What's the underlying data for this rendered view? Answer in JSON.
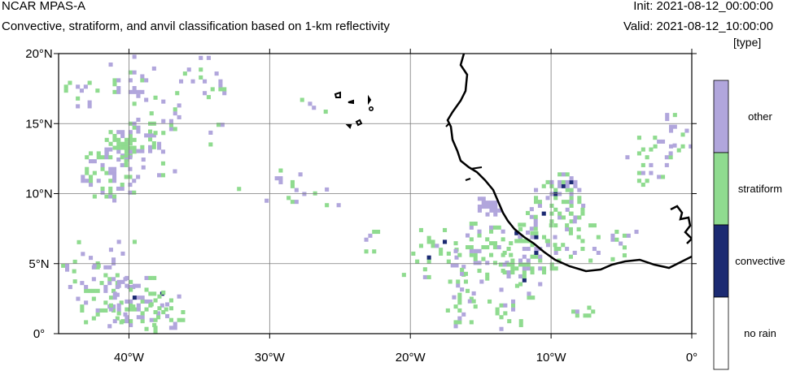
{
  "header": {
    "title": "NCAR MPAS-A",
    "subtitle": "Convective, stratiform, and anvil classification based on 1-km reflectivity",
    "init": "Init: 2021-08-12_00:00:00",
    "valid": "Valid: 2021-08-12_10:00:00",
    "units": "[type]"
  },
  "map": {
    "lon_range": [
      -45,
      0
    ],
    "lat_range": [
      0,
      20
    ],
    "lon_ticks": [
      {
        "value": -40,
        "label": "40°W"
      },
      {
        "value": -30,
        "label": "30°W"
      },
      {
        "value": -20,
        "label": "20°W"
      },
      {
        "value": -10,
        "label": "10°W"
      },
      {
        "value": 0,
        "label": "0°"
      }
    ],
    "lat_ticks": [
      {
        "value": 20,
        "label": "20°N"
      },
      {
        "value": 15,
        "label": "15°N"
      },
      {
        "value": 10,
        "label": "10°N"
      },
      {
        "value": 5,
        "label": "5°N"
      },
      {
        "value": 0,
        "label": "0°"
      }
    ],
    "gridlines": true
  },
  "legend": {
    "items": [
      {
        "label": "other",
        "color": "#b1a6dc"
      },
      {
        "label": "stratiform",
        "color": "#8fdb8f"
      },
      {
        "label": "convective",
        "color": "#1b2a72"
      },
      {
        "label": "no rain",
        "color": "#ffffff"
      }
    ]
  }
}
